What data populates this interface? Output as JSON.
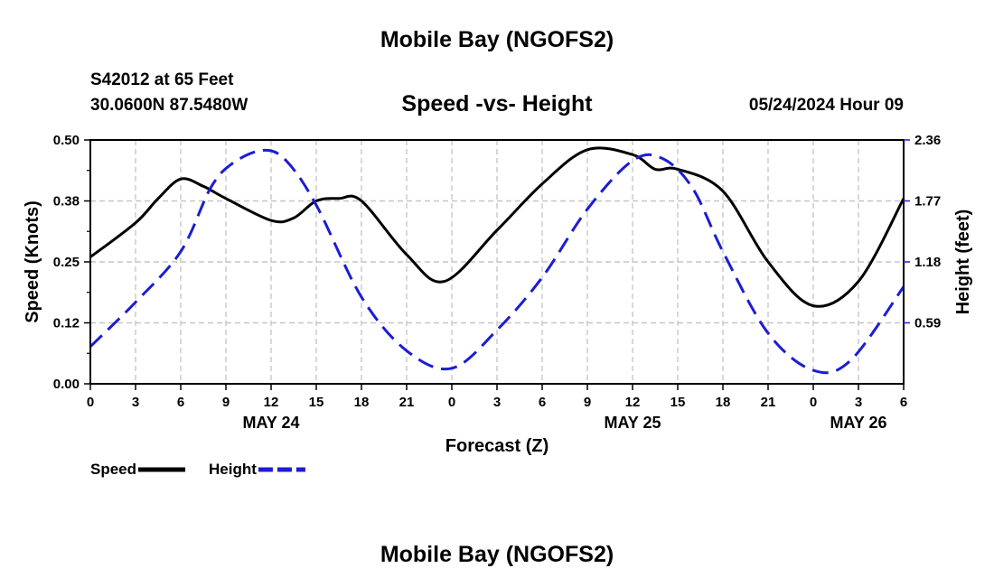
{
  "header": {
    "title": "Mobile Bay (NGOFS2)",
    "station": "S42012 at 65 Feet",
    "coords": "30.0600N  87.5480W",
    "subtitle": "Speed -vs- Height",
    "datetime": "05/24/2024 Hour 09",
    "footer_title": "Mobile Bay (NGOFS2)"
  },
  "chart_data": {
    "type": "line",
    "title": "Speed -vs- Height",
    "xlabel": "Forecast (Z)",
    "ylabel_left": "Speed (Knots)",
    "ylabel_right": "Height (feet)",
    "x_range_hours": [
      0,
      54
    ],
    "x_tick_step_hours": 3,
    "x_tick_labels": [
      "0",
      "3",
      "6",
      "9",
      "12",
      "15",
      "18",
      "21",
      "0",
      "3",
      "6",
      "9",
      "12",
      "15",
      "18",
      "21",
      "0",
      "3",
      "6"
    ],
    "date_labels": [
      {
        "label": "MAY 24",
        "hour": 12
      },
      {
        "label": "MAY 25",
        "hour": 36
      },
      {
        "label": "MAY 26",
        "hour": 51
      }
    ],
    "ylim_left": [
      0,
      0.5
    ],
    "yticks_left": [
      "0.00",
      "0.12",
      "0.25",
      "0.38",
      "0.50"
    ],
    "ylim_right": [
      0,
      2.36
    ],
    "yticks_right": [
      {
        "label": "0.59",
        "value": 0.59
      },
      {
        "label": "1.18",
        "value": 1.18
      },
      {
        "label": "1.77",
        "value": 1.77
      },
      {
        "label": "2.36",
        "value": 2.36
      }
    ],
    "grid": true,
    "legend_position": "bottom-left",
    "series": [
      {
        "name": "Speed",
        "axis": "left",
        "color": "#000000",
        "dash": "solid",
        "x": [
          0,
          3,
          4.5,
          6,
          7.5,
          9,
          12,
          13.5,
          15,
          16.5,
          18,
          21,
          23.5,
          27,
          30,
          33,
          36,
          37.5,
          39,
          42,
          45,
          48,
          51,
          54
        ],
        "y": [
          0.26,
          0.33,
          0.38,
          0.42,
          0.405,
          0.38,
          0.335,
          0.34,
          0.375,
          0.38,
          0.375,
          0.265,
          0.21,
          0.315,
          0.41,
          0.48,
          0.47,
          0.44,
          0.44,
          0.395,
          0.25,
          0.16,
          0.21,
          0.38
        ]
      },
      {
        "name": "Height",
        "axis": "right",
        "color": "#1c1cd4",
        "dash": "dashed",
        "x": [
          0,
          3,
          6,
          8,
          9.5,
          11.5,
          13,
          15,
          18,
          21,
          24,
          27,
          30,
          33,
          36,
          38,
          40,
          42,
          45,
          48,
          50.5,
          54
        ],
        "y": [
          0.36,
          0.79,
          1.28,
          1.9,
          2.14,
          2.26,
          2.16,
          1.73,
          0.84,
          0.32,
          0.15,
          0.52,
          1.03,
          1.69,
          2.16,
          2.18,
          1.89,
          1.28,
          0.49,
          0.13,
          0.23,
          0.94
        ]
      }
    ]
  }
}
